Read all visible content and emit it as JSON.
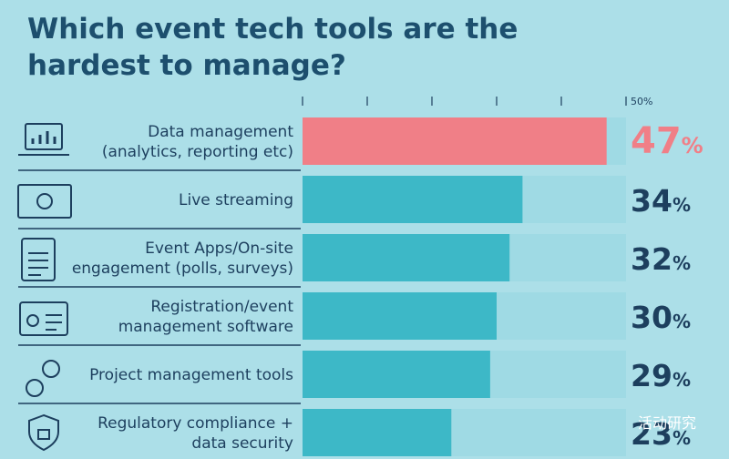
{
  "chart_data": {
    "type": "bar",
    "orientation": "horizontal",
    "title": "Which event tech tools are the hardest to manage?",
    "categories": [
      "Data management\n(analytics, reporting etc)",
      "Live streaming",
      "Event Apps/On-site\nengagement (polls, surveys)",
      "Registration/event\nmanagement software",
      "Project management tools",
      "Regulatory compliance +\ndata security"
    ],
    "values": [
      47,
      34,
      32,
      30,
      29,
      23
    ],
    "value_labels": [
      "47%",
      "34%",
      "32%",
      "30%",
      "29%",
      "23%"
    ],
    "colors": [
      "#f07f87",
      "#3db8c7",
      "#3db8c7",
      "#3db8c7",
      "#3db8c7",
      "#3db8c7"
    ],
    "label_colors": [
      "#f07f87",
      "#1d3f5e",
      "#1d3f5e",
      "#1d3f5e",
      "#1d3f5e",
      "#1d3f5e"
    ],
    "track_color": "#9fdae4",
    "xlim": [
      0,
      50
    ],
    "xticks": [
      {
        "value": 0,
        "label": null
      },
      {
        "value": 10,
        "label": null
      },
      {
        "value": 20,
        "label": null
      },
      {
        "value": 30,
        "label": null
      },
      {
        "value": 40,
        "label": null
      },
      {
        "value": 50,
        "label": "50%"
      }
    ],
    "watermark": "活动研究"
  }
}
